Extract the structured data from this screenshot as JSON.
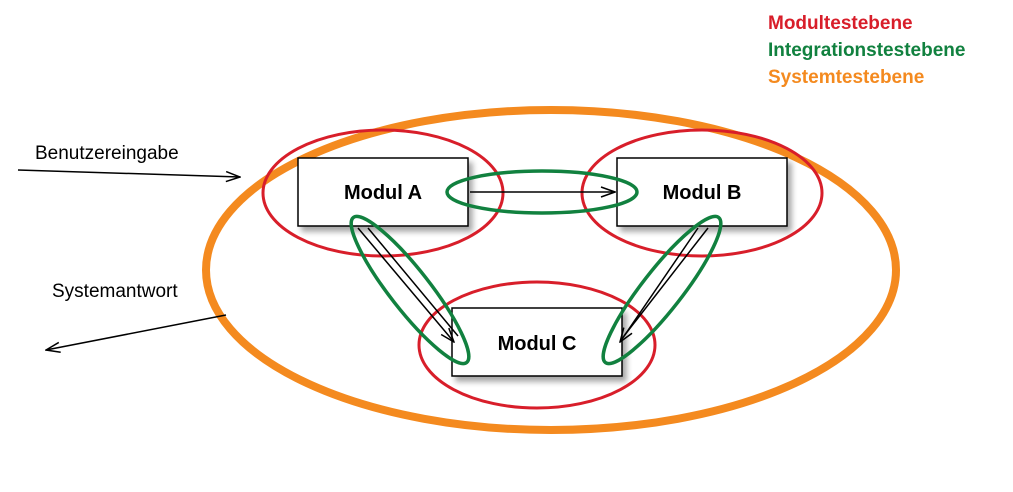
{
  "legend": {
    "items": [
      {
        "label": "Modultestebene",
        "color": "#d81e2a"
      },
      {
        "label": "Integrationstestebene",
        "color": "#11813f"
      },
      {
        "label": "Systemtestebene",
        "color": "#f48a1f"
      }
    ]
  },
  "labels": {
    "input": "Benutzereingabe",
    "output": "Systemantwort"
  },
  "modules": [
    {
      "id": "a",
      "label": "Modul A"
    },
    {
      "id": "b",
      "label": "Modul B"
    },
    {
      "id": "c",
      "label": "Modul C"
    }
  ],
  "colors": {
    "module_level": "#d81e2a",
    "integration_level": "#11813f",
    "system_level": "#f48a1f",
    "arrow": "#000000"
  }
}
